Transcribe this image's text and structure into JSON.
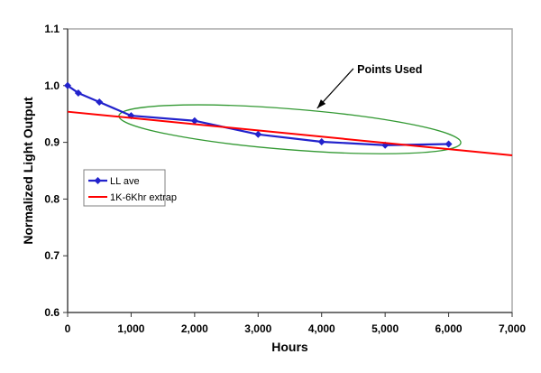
{
  "chart_data": {
    "type": "line",
    "title": "",
    "xlabel": "Hours",
    "ylabel": "Normalized Light Output",
    "xlim": [
      0,
      7000
    ],
    "ylim": [
      0.6,
      1.1
    ],
    "x_ticks": [
      0,
      1000,
      2000,
      3000,
      4000,
      5000,
      6000,
      7000
    ],
    "x_tick_labels": [
      "0",
      "1,000",
      "2,000",
      "3,000",
      "4,000",
      "5,000",
      "6,000",
      "7,000"
    ],
    "y_ticks": [
      0.6,
      0.7,
      0.8,
      0.9,
      1.0,
      1.1
    ],
    "y_tick_labels": [
      "0.6",
      "0.7",
      "0.8",
      "0.9",
      "1.0",
      "1.1"
    ],
    "grid": false,
    "legend": {
      "position": "inside-left",
      "border": true
    },
    "series": [
      {
        "name": "LL ave",
        "color": "#2222cc",
        "marker": "diamond",
        "line_width": 2.2,
        "x": [
          0,
          168,
          500,
          1000,
          2000,
          3000,
          4000,
          5000,
          6000
        ],
        "y": [
          1.0,
          0.987,
          0.971,
          0.947,
          0.938,
          0.914,
          0.901,
          0.895,
          0.897
        ]
      },
      {
        "name": "1K-6Khr extrap",
        "color": "#ff0000",
        "marker": "none",
        "line_width": 2,
        "x": [
          0,
          7000
        ],
        "y": [
          0.954,
          0.877
        ]
      }
    ],
    "annotation": {
      "label": "Points Used",
      "label_anchor_data": [
        4560,
        1.028
      ],
      "arrow_from_data": [
        4500,
        1.03
      ],
      "arrow_to_data": [
        3930,
        0.96
      ],
      "ellipse": {
        "center_data": [
          3500,
          0.923
        ],
        "rx_hours": 2700,
        "ry_units": 0.036,
        "rotation_deg": 4.5,
        "color": "#339933"
      }
    },
    "colors": {
      "plot_border": "#a9a9a9",
      "axis_line": "#555555",
      "tick": "#333333",
      "annotation": "#000000",
      "background": "#ffffff"
    }
  }
}
